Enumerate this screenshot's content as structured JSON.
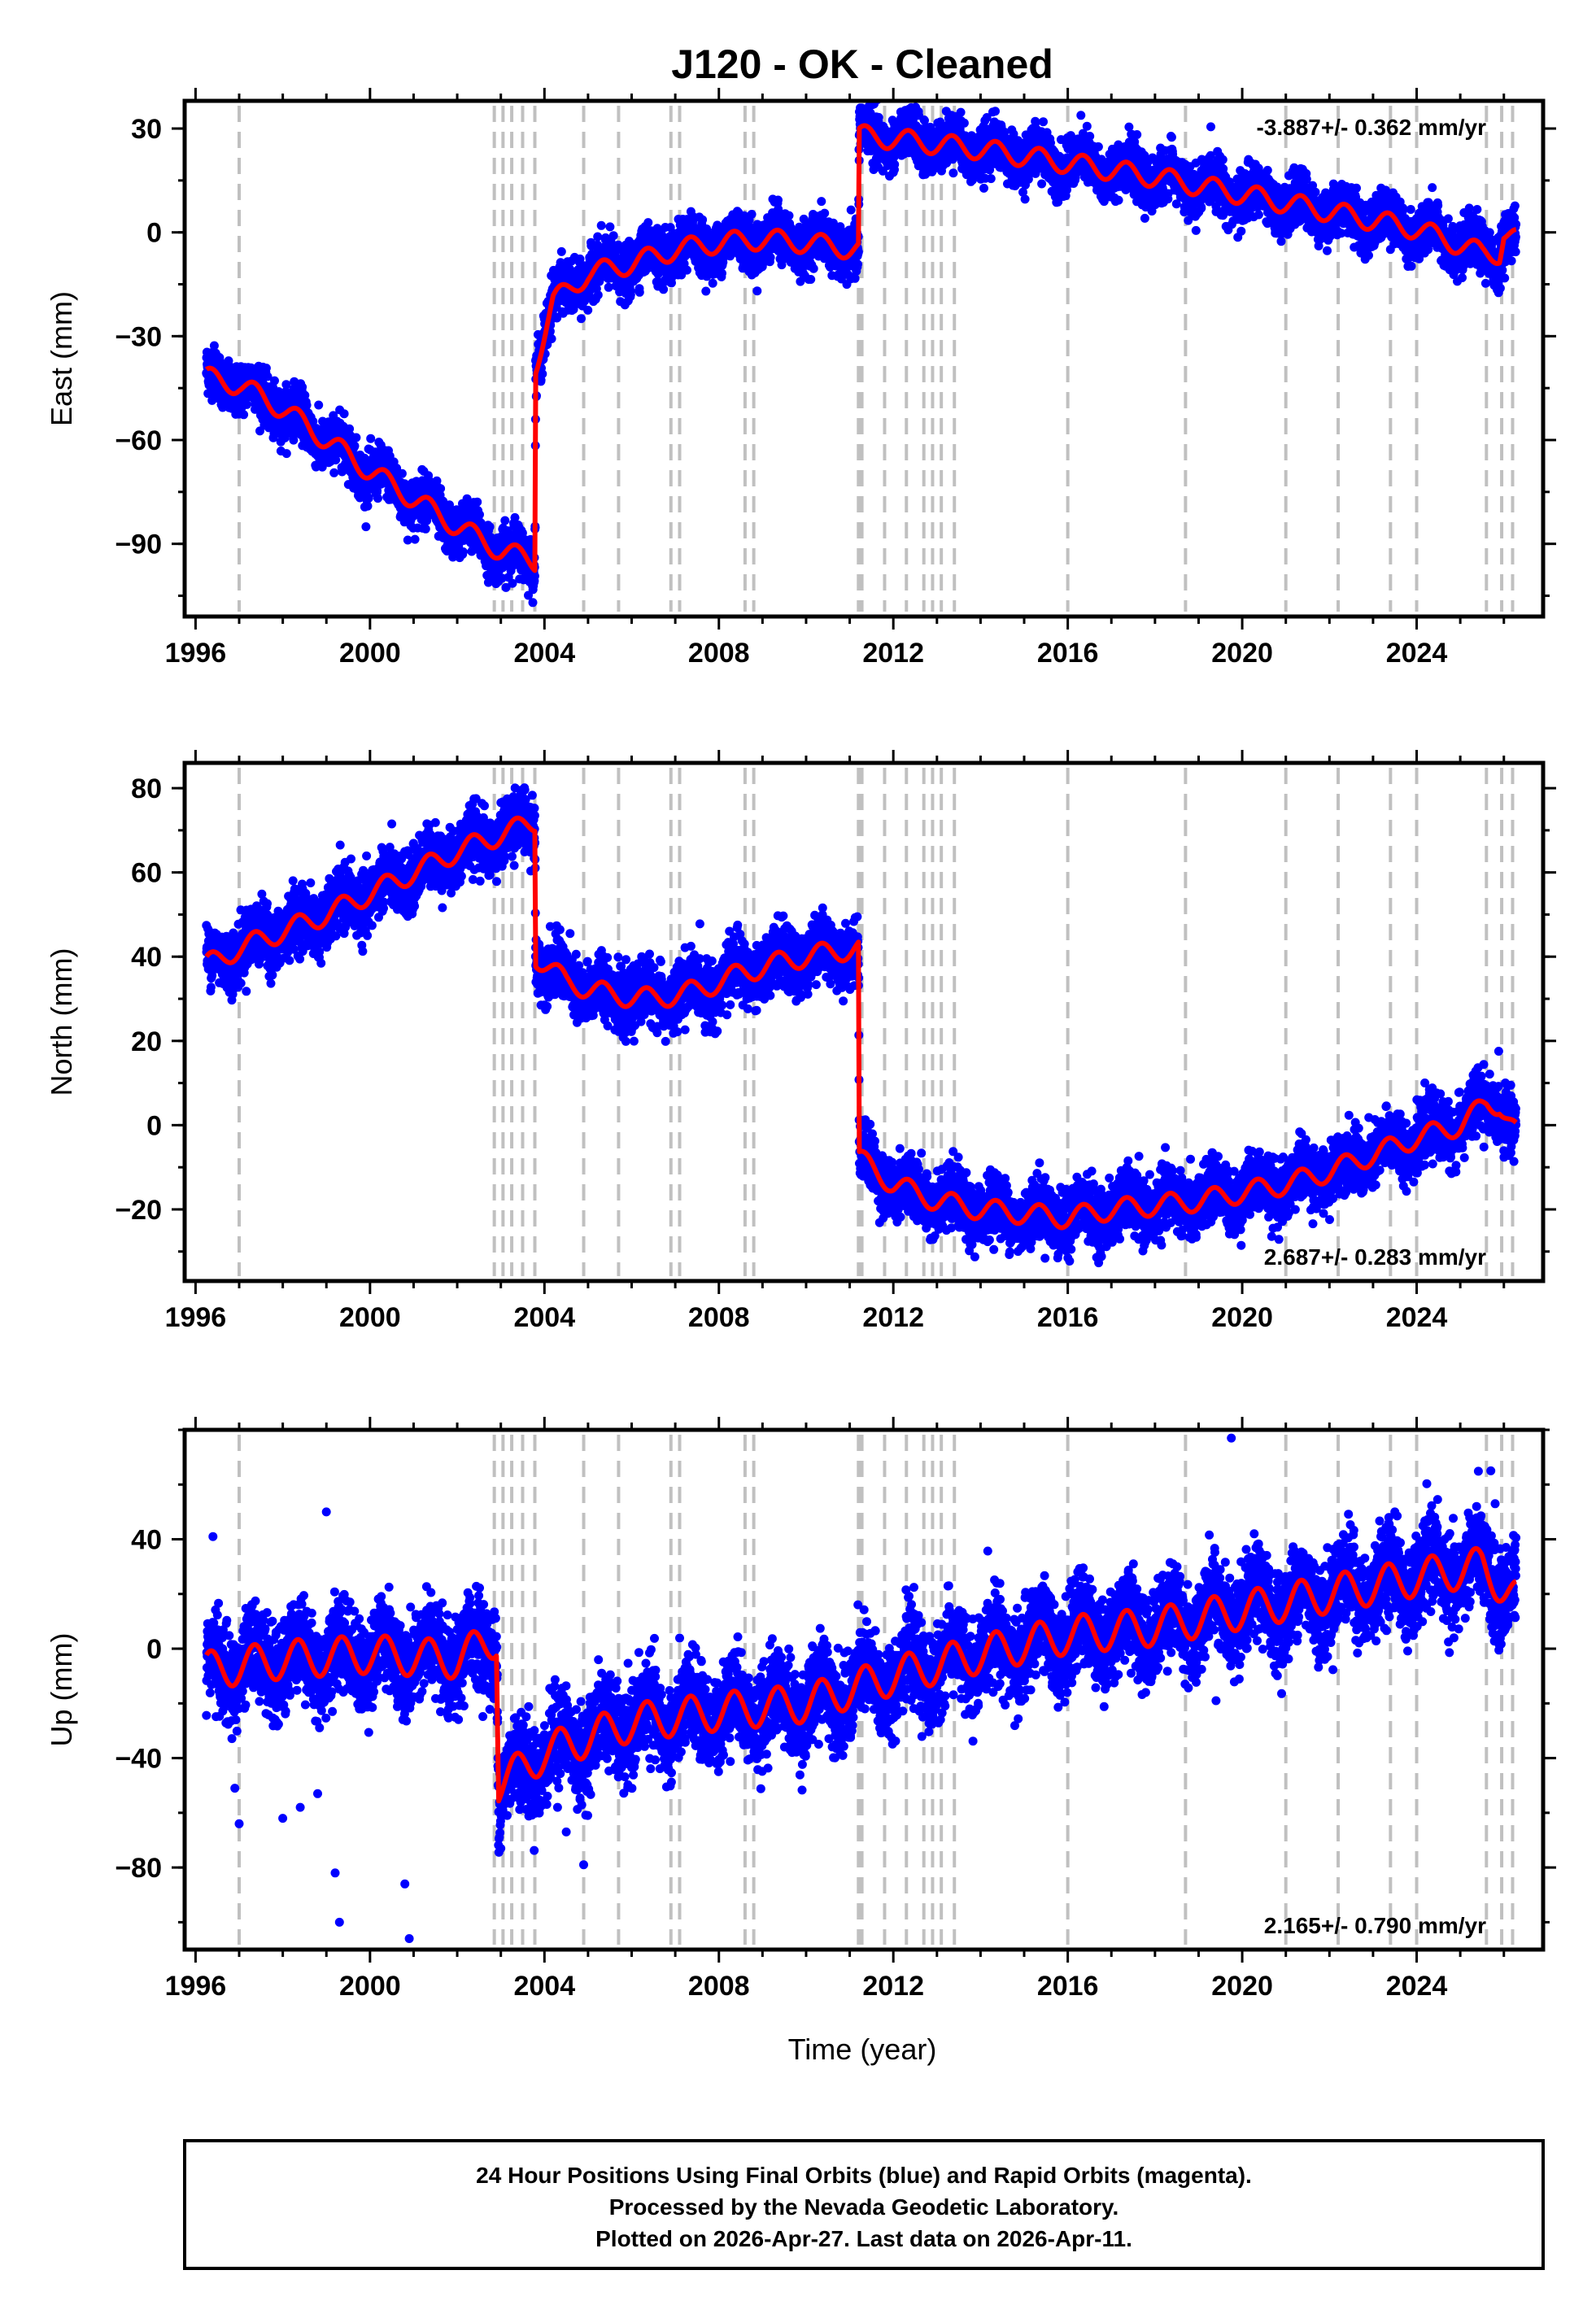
{
  "title": "J120  - OK - Cleaned",
  "colors": {
    "series_points": "#0000ff",
    "model_line": "#ff0000",
    "event_lines": "#c0c0c0",
    "frame": "#000000"
  },
  "chart_data": [
    {
      "type": "scatter",
      "name": "east",
      "ylabel": "East (mm)",
      "xlabel": "",
      "xlim": [
        1995.75,
        2026.9
      ],
      "ylim": [
        -111,
        38
      ],
      "xticks": [
        1996,
        2000,
        2004,
        2008,
        2012,
        2016,
        2020,
        2024
      ],
      "xtick_labels": [
        "1996",
        "2000",
        "2004",
        "2008",
        "2012",
        "2016",
        "2020",
        "2024"
      ],
      "yticks": [
        30,
        0,
        -30,
        -60,
        -90
      ],
      "ytick_labels": [
        "30",
        "0",
        "−30",
        "−60",
        "−90"
      ],
      "rate_label": "-3.887+/- 0.362 mm/yr",
      "rate_position": "top-right",
      "model_knots": [
        [
          1996.25,
          -42
        ],
        [
          1997.0,
          -44
        ],
        [
          1998.0,
          -51
        ],
        [
          1999.0,
          -60
        ],
        [
          2000.0,
          -69
        ],
        [
          2001.0,
          -77
        ],
        [
          2002.0,
          -85
        ],
        [
          2003.0,
          -92
        ],
        [
          2003.78,
          -95
        ],
        [
          2003.8,
          -38
        ],
        [
          2004.2,
          -20
        ],
        [
          2005.0,
          -12
        ],
        [
          2006.0,
          -9
        ],
        [
          2007.0,
          -5
        ],
        [
          2008.0,
          -3
        ],
        [
          2009.0,
          -2
        ],
        [
          2010.0,
          -3
        ],
        [
          2011.2,
          -5
        ],
        [
          2011.22,
          28
        ],
        [
          2012.0,
          27
        ],
        [
          2014.0,
          24
        ],
        [
          2016.0,
          20
        ],
        [
          2018.0,
          16
        ],
        [
          2020.0,
          11
        ],
        [
          2022.0,
          6
        ],
        [
          2024.0,
          1
        ],
        [
          2025.5,
          -6
        ],
        [
          2025.9,
          -6
        ],
        [
          2026.0,
          0
        ],
        [
          2026.3,
          -2
        ]
      ],
      "seasonal_amplitude": 3,
      "scatter_sigma": 3.5
    },
    {
      "type": "scatter",
      "name": "north",
      "ylabel": "North (mm)",
      "xlabel": "",
      "xlim": [
        1995.75,
        2026.9
      ],
      "ylim": [
        -37,
        86
      ],
      "xticks": [
        1996,
        2000,
        2004,
        2008,
        2012,
        2016,
        2020,
        2024
      ],
      "xtick_labels": [
        "1996",
        "2000",
        "2004",
        "2008",
        "2012",
        "2016",
        "2020",
        "2024"
      ],
      "yticks": [
        80,
        60,
        40,
        20,
        0,
        -20
      ],
      "ytick_labels": [
        "80",
        "60",
        "40",
        "20",
        "0",
        "−20"
      ],
      "rate_label": "2.687+/- 0.283 mm/yr",
      "rate_position": "bottom-right",
      "model_knots": [
        [
          1996.25,
          38
        ],
        [
          1997.0,
          42
        ],
        [
          1998.0,
          46
        ],
        [
          1999.0,
          50
        ],
        [
          2000.0,
          55
        ],
        [
          2001.0,
          60
        ],
        [
          2002.0,
          65
        ],
        [
          2003.0,
          69
        ],
        [
          2003.78,
          72
        ],
        [
          2003.8,
          40
        ],
        [
          2004.5,
          34
        ],
        [
          2005.5,
          31
        ],
        [
          2006.5,
          30
        ],
        [
          2007.5,
          32
        ],
        [
          2008.5,
          36
        ],
        [
          2009.5,
          39
        ],
        [
          2010.5,
          41
        ],
        [
          2011.2,
          42
        ],
        [
          2011.22,
          -8
        ],
        [
          2012.0,
          -14
        ],
        [
          2013.0,
          -18
        ],
        [
          2014.0,
          -20
        ],
        [
          2015.0,
          -21
        ],
        [
          2016.0,
          -22
        ],
        [
          2017.0,
          -20
        ],
        [
          2018.0,
          -19
        ],
        [
          2019.0,
          -18
        ],
        [
          2020.0,
          -16
        ],
        [
          2021.0,
          -14
        ],
        [
          2022.0,
          -11
        ],
        [
          2023.0,
          -7
        ],
        [
          2024.0,
          -3
        ],
        [
          2025.0,
          0
        ],
        [
          2025.6,
          5
        ],
        [
          2025.9,
          5
        ],
        [
          2026.3,
          -2
        ]
      ],
      "seasonal_amplitude": 2.5,
      "scatter_sigma": 3.5
    },
    {
      "type": "scatter",
      "name": "up",
      "ylabel": "Up (mm)",
      "xlabel": "Time (year)",
      "xlim": [
        1995.75,
        2026.9
      ],
      "ylim": [
        -110,
        80
      ],
      "xticks": [
        1996,
        2000,
        2004,
        2008,
        2012,
        2016,
        2020,
        2024
      ],
      "xtick_labels": [
        "1996",
        "2000",
        "2004",
        "2008",
        "2012",
        "2016",
        "2020",
        "2024"
      ],
      "yticks": [
        40,
        0,
        -40,
        -80
      ],
      "ytick_labels": [
        "40",
        "0",
        "−40",
        "−80"
      ],
      "rate_label": "2.165+/- 0.790 mm/yr",
      "rate_position": "bottom-right",
      "model_knots": [
        [
          1996.25,
          -8
        ],
        [
          1998.0,
          -4
        ],
        [
          2000.0,
          -2
        ],
        [
          2002.0,
          -4
        ],
        [
          2002.9,
          4
        ],
        [
          2002.95,
          -50
        ],
        [
          2004.0,
          -38
        ],
        [
          2006.0,
          -27
        ],
        [
          2008.0,
          -23
        ],
        [
          2010.0,
          -20
        ],
        [
          2012.0,
          -10
        ],
        [
          2014.0,
          -2
        ],
        [
          2016.0,
          5
        ],
        [
          2018.0,
          8
        ],
        [
          2020.0,
          14
        ],
        [
          2022.0,
          20
        ],
        [
          2024.0,
          26
        ],
        [
          2025.5,
          30
        ],
        [
          2026.3,
          18
        ]
      ],
      "seasonal_amplitude": 7,
      "scatter_sigma": 8,
      "outliers": [
        [
          1996.4,
          41
        ],
        [
          1996.9,
          -51
        ],
        [
          1997.0,
          -64
        ],
        [
          1998.0,
          -62
        ],
        [
          1998.4,
          -58
        ],
        [
          1998.8,
          -53
        ],
        [
          1999.0,
          50
        ],
        [
          1999.2,
          -82
        ],
        [
          1999.3,
          -100
        ],
        [
          2000.8,
          -86
        ],
        [
          2000.9,
          -106
        ],
        [
          2003.0,
          -73
        ],
        [
          2004.3,
          -58
        ],
        [
          2004.5,
          -67
        ],
        [
          2004.9,
          -79
        ],
        [
          2019.4,
          -19
        ],
        [
          2019.75,
          77
        ],
        [
          2023.5,
          50
        ],
        [
          2025.7,
          65
        ],
        [
          2025.8,
          53
        ]
      ]
    }
  ],
  "event_lines": [
    1997.0,
    2002.85,
    2003.05,
    2003.25,
    2003.5,
    2003.78,
    2004.9,
    2005.7,
    2006.9,
    2007.1,
    2008.6,
    2008.8,
    2011.2,
    2011.22,
    2011.28,
    2011.8,
    2012.3,
    2012.7,
    2012.9,
    2013.1,
    2013.4,
    2016.0,
    2018.7,
    2021.0,
    2022.2,
    2023.4,
    2024.0,
    2025.6,
    2025.95,
    2026.2
  ],
  "footer": {
    "line1": "24 Hour Positions Using Final Orbits (blue) and Rapid Orbits (magenta).",
    "line2": "Processed by the Nevada Geodetic Laboratory.",
    "line3": "Plotted on 2026-Apr-27. Last data on 2026-Apr-11."
  }
}
